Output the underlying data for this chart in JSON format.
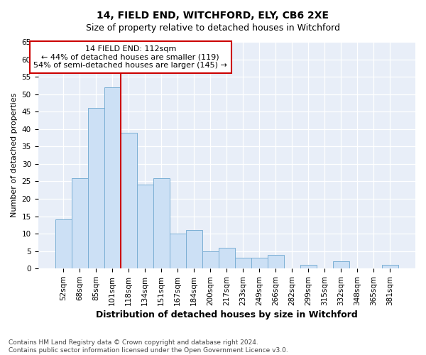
{
  "title1": "14, FIELD END, WITCHFORD, ELY, CB6 2XE",
  "title2": "Size of property relative to detached houses in Witchford",
  "xlabel": "Distribution of detached houses by size in Witchford",
  "ylabel": "Number of detached properties",
  "categories": [
    "52sqm",
    "68sqm",
    "85sqm",
    "101sqm",
    "118sqm",
    "134sqm",
    "151sqm",
    "167sqm",
    "184sqm",
    "200sqm",
    "217sqm",
    "233sqm",
    "249sqm",
    "266sqm",
    "282sqm",
    "299sqm",
    "315sqm",
    "332sqm",
    "348sqm",
    "365sqm",
    "381sqm"
  ],
  "values": [
    14,
    26,
    46,
    52,
    39,
    24,
    26,
    10,
    11,
    5,
    6,
    3,
    3,
    4,
    0,
    1,
    0,
    2,
    0,
    0,
    1
  ],
  "bar_color": "#cce0f5",
  "bar_edge_color": "#7bafd4",
  "ylim": [
    0,
    65
  ],
  "yticks": [
    0,
    5,
    10,
    15,
    20,
    25,
    30,
    35,
    40,
    45,
    50,
    55,
    60,
    65
  ],
  "vline_index": 4,
  "vline_color": "#cc0000",
  "annotation_line1": "14 FIELD END: 112sqm",
  "annotation_line2": "← 44% of detached houses are smaller (119)",
  "annotation_line3": "54% of semi-detached houses are larger (145) →",
  "annotation_box_facecolor": "#ffffff",
  "annotation_box_edgecolor": "#cc0000",
  "footer1": "Contains HM Land Registry data © Crown copyright and database right 2024.",
  "footer2": "Contains public sector information licensed under the Open Government Licence v3.0.",
  "fig_facecolor": "#ffffff",
  "plot_facecolor": "#e8eef8",
  "grid_color": "#ffffff",
  "title_fontsize": 10,
  "subtitle_fontsize": 9,
  "xlabel_fontsize": 9,
  "ylabel_fontsize": 8,
  "tick_fontsize": 7.5,
  "footer_fontsize": 6.5
}
